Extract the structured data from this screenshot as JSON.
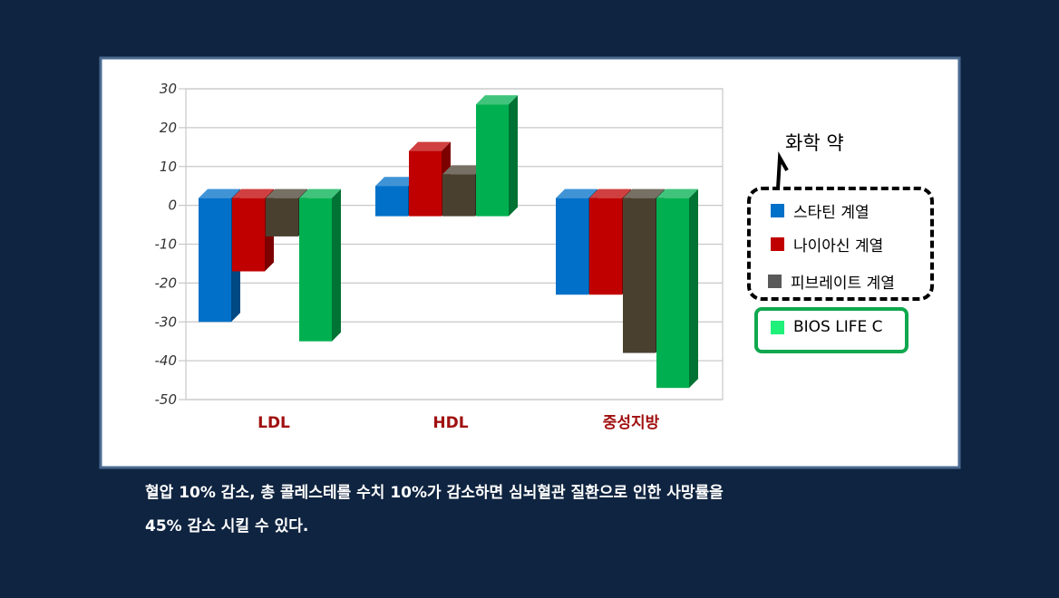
{
  "chart_data": {
    "type": "bar",
    "categories": [
      "LDL",
      "HDL",
      "중성지방"
    ],
    "series": [
      {
        "name": "스타틴 계열",
        "values": [
          -30,
          5,
          -23
        ],
        "color": "#0070c8"
      },
      {
        "name": "나이아신 계열",
        "values": [
          -17,
          14,
          -23
        ],
        "color": "#c00000"
      },
      {
        "name": "피브레이트 계열",
        "values": [
          -8,
          8,
          -38
        ],
        "color": "#4a4030"
      },
      {
        "name": "BIOS LIFE C",
        "values": [
          -35,
          26,
          -47
        ],
        "color": "#00b050"
      }
    ],
    "yticks": [
      30,
      20,
      10,
      0,
      -10,
      -20,
      -30,
      -40,
      -50
    ],
    "ylim": [
      -50,
      30
    ],
    "grid": true,
    "category_label_color": "#a01010"
  },
  "legend": {
    "title": "화학 약",
    "items": [
      {
        "label": "스타틴 계열",
        "color": "#0070c8"
      },
      {
        "label": "나이아신 계열",
        "color": "#c00000"
      },
      {
        "label": "피브레이트 계열",
        "color": "#595959"
      }
    ],
    "highlight": {
      "label": "BIOS LIFE C",
      "color": "#1ef07a"
    }
  },
  "caption": {
    "line1": "혈압 10% 감소, 총 콜레스테롤 수치 10%가 감소하면  심뇌혈관 질환으로 인한 사망률을",
    "line2": "45% 감소 시킬 수 있다."
  }
}
